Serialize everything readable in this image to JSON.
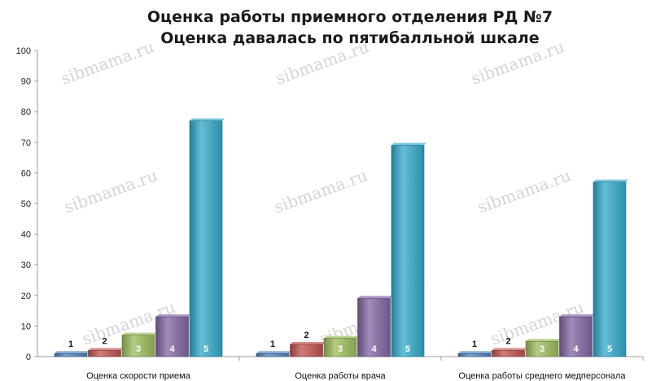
{
  "chart_data": {
    "type": "bar",
    "title_lines": [
      "Оценка работы приемного отделения РД №7",
      "Оценка давалась по пятибалльной шкале"
    ],
    "categories": [
      "Оценка скорости приема",
      "Оценка работы врача",
      "Оценка работы среднего медперсонала"
    ],
    "series": [
      {
        "name": "1",
        "color": "#4f81bd",
        "values": [
          1,
          1,
          1
        ]
      },
      {
        "name": "2",
        "color": "#c0504d",
        "values": [
          2,
          4,
          2
        ]
      },
      {
        "name": "3",
        "color": "#9bbb59",
        "values": [
          7,
          6,
          5
        ]
      },
      {
        "name": "4",
        "color": "#8064a2",
        "values": [
          13,
          19,
          13
        ]
      },
      {
        "name": "5",
        "color": "#31a8c9",
        "values": [
          77,
          69,
          57
        ]
      }
    ],
    "ylim": [
      0,
      100
    ],
    "yticks": [
      0,
      10,
      20,
      30,
      40,
      50,
      60,
      70,
      80,
      90,
      100
    ],
    "grid": false,
    "legend": "none"
  },
  "watermark": "sibmama.ru"
}
